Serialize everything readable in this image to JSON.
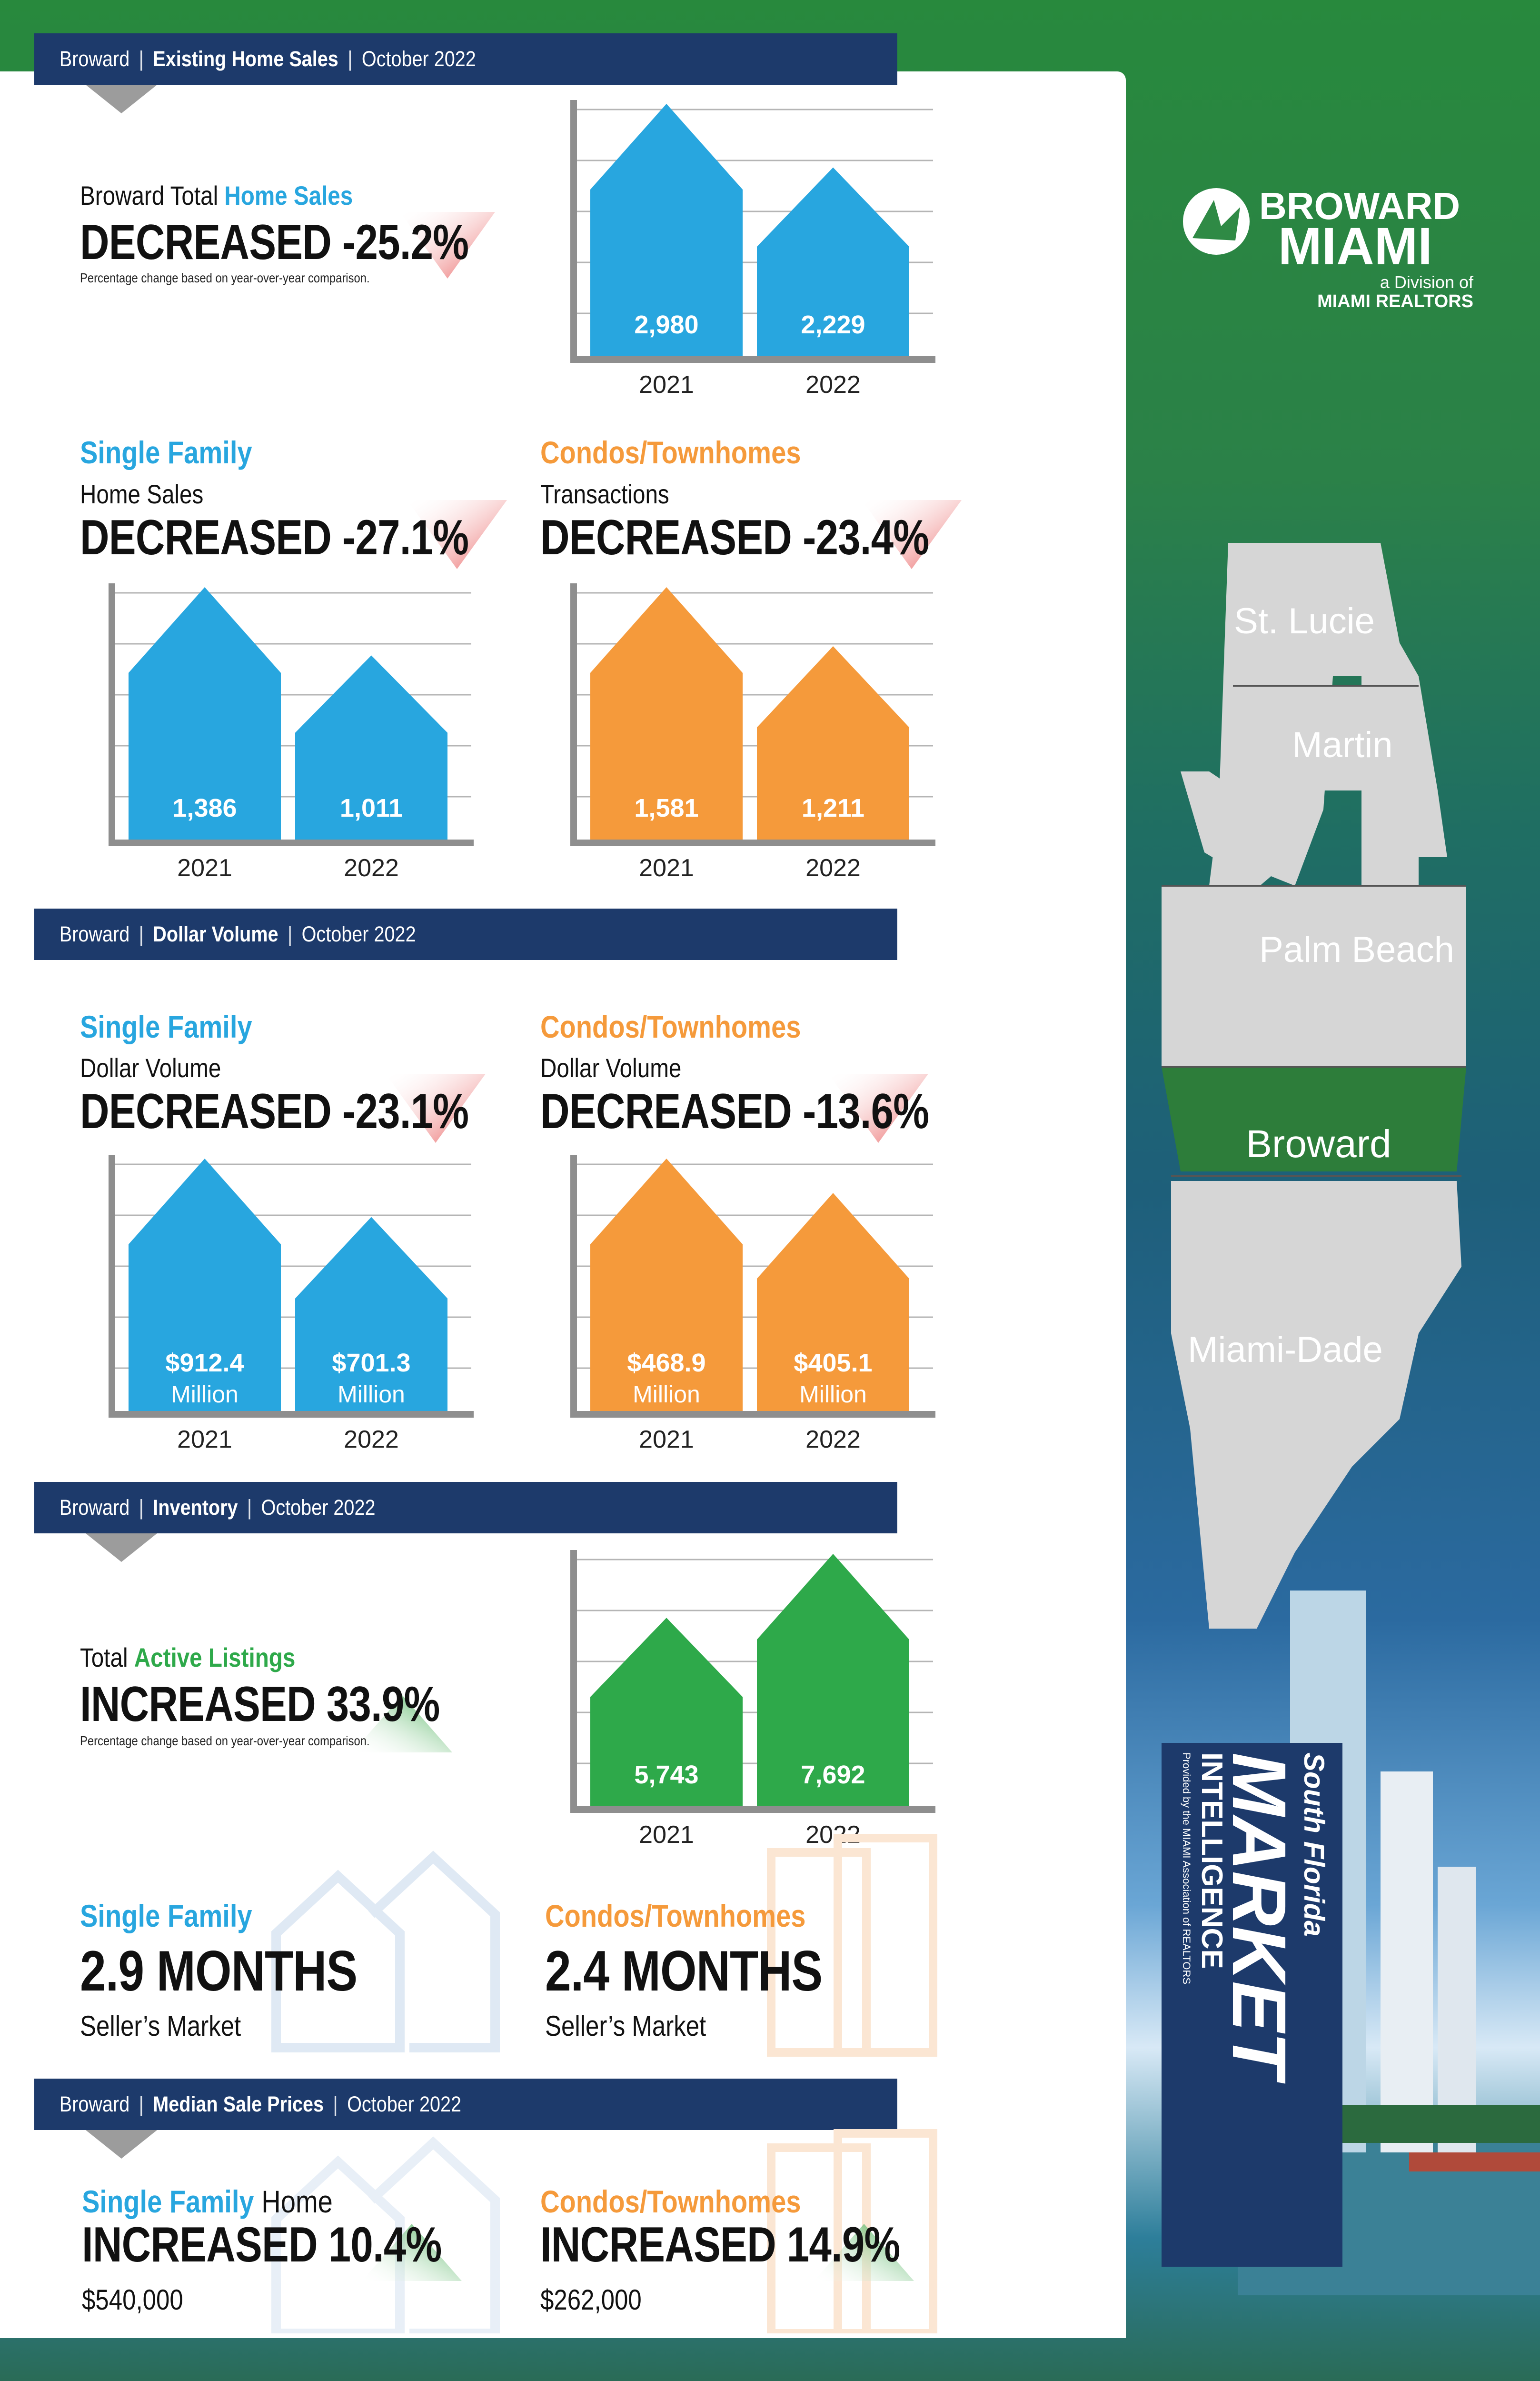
{
  "colors": {
    "navy": "#1d3a6b",
    "blue": "#28a6df",
    "orange": "#f59a3b",
    "green": "#2ea94a",
    "decrease_arrow": "#e85a5a",
    "increase_arrow": "#3aa84a",
    "map_gray": "#d6d6d6",
    "map_highlight": "#2d7d3a"
  },
  "logo": {
    "line1": "BROWARD",
    "line2": "MIAMI",
    "line3": "a Division of",
    "line4": "MIAMI REALTORS"
  },
  "map": {
    "counties": [
      "St. Lucie",
      "Martin",
      "Palm Beach",
      "Broward",
      "Miami-Dade"
    ],
    "highlight": "Broward"
  },
  "side_title": {
    "line1": "South Florida",
    "line2": "MARKET",
    "line3": "INTELLIGENCE",
    "line4": "Provided by the MIAMI Association of REALTORS"
  },
  "sections": {
    "existing": {
      "region": "Broward",
      "topic": "Existing Home Sales",
      "period": "October 2022"
    },
    "dollar": {
      "region": "Broward",
      "topic": "Dollar Volume",
      "period": "October 2022"
    },
    "inventory": {
      "region": "Broward",
      "topic": "Inventory",
      "period": "October 2022"
    },
    "median": {
      "region": "Broward",
      "topic": "Median Sale Prices",
      "period": "October 2022"
    }
  },
  "total_sales": {
    "label_a": "Broward Total ",
    "label_b": "Home Sales",
    "headline": "DECREASED -25.2%",
    "note": "Percentage change based on year-over-year comparison."
  },
  "sf_sales": {
    "title": "Single Family",
    "sub": "Home Sales",
    "headline": "DECREASED -27.1%"
  },
  "condo_sales": {
    "title": "Condos/Townhomes",
    "sub": "Transactions",
    "headline": "DECREASED -23.4%"
  },
  "sf_volume": {
    "title": "Single Family",
    "sub": "Dollar Volume",
    "headline": "DECREASED -23.1%"
  },
  "condo_volume": {
    "title": "Condos/Townhomes",
    "sub": "Dollar Volume",
    "headline": "DECREASED -13.6%"
  },
  "listings": {
    "label_a": "Total ",
    "label_b": "Active Listings",
    "headline": "INCREASED 33.9%",
    "note": "Percentage change based on year-over-year comparison."
  },
  "sf_months": {
    "title": "Single Family",
    "value": "2.9 MONTHS",
    "market": "Seller’s Market"
  },
  "condo_months": {
    "title": "Condos/Townhomes",
    "value": "2.4 MONTHS",
    "market": "Seller’s Market"
  },
  "sf_median": {
    "title_a": "Single Family",
    "title_b": " Home",
    "headline": "INCREASED 10.4%",
    "price": "$540,000"
  },
  "condo_median": {
    "title": "Condos/Townhomes",
    "headline": "INCREASED 14.9%",
    "price": "$262,000"
  },
  "chart_data": [
    {
      "type": "bar",
      "id": "total_sales",
      "categories": [
        "2021",
        "2022"
      ],
      "values": [
        2980,
        2229
      ],
      "labels": [
        "2,980",
        "2,229"
      ],
      "sublabels": [
        "",
        ""
      ],
      "color": "#28a6df"
    },
    {
      "type": "bar",
      "id": "sf_sales",
      "categories": [
        "2021",
        "2022"
      ],
      "values": [
        1386,
        1011
      ],
      "labels": [
        "1,386",
        "1,011"
      ],
      "sublabels": [
        "",
        ""
      ],
      "color": "#28a6df"
    },
    {
      "type": "bar",
      "id": "condo_sales",
      "categories": [
        "2021",
        "2022"
      ],
      "values": [
        1581,
        1211
      ],
      "labels": [
        "1,581",
        "1,211"
      ],
      "sublabels": [
        "",
        ""
      ],
      "color": "#f59a3b"
    },
    {
      "type": "bar",
      "id": "sf_volume",
      "categories": [
        "2021",
        "2022"
      ],
      "values": [
        912.4,
        701.3
      ],
      "labels": [
        "$912.4",
        "$701.3"
      ],
      "sublabels": [
        "Million",
        "Million"
      ],
      "color": "#28a6df"
    },
    {
      "type": "bar",
      "id": "condo_volume",
      "categories": [
        "2021",
        "2022"
      ],
      "values": [
        468.9,
        405.1
      ],
      "labels": [
        "$468.9",
        "$405.1"
      ],
      "sublabels": [
        "Million",
        "Million"
      ],
      "color": "#f59a3b"
    },
    {
      "type": "bar",
      "id": "listings",
      "categories": [
        "2021",
        "2022"
      ],
      "values": [
        5743,
        7692
      ],
      "labels": [
        "5,743",
        "7,692"
      ],
      "sublabels": [
        "",
        ""
      ],
      "color": "#2ea94a"
    }
  ]
}
